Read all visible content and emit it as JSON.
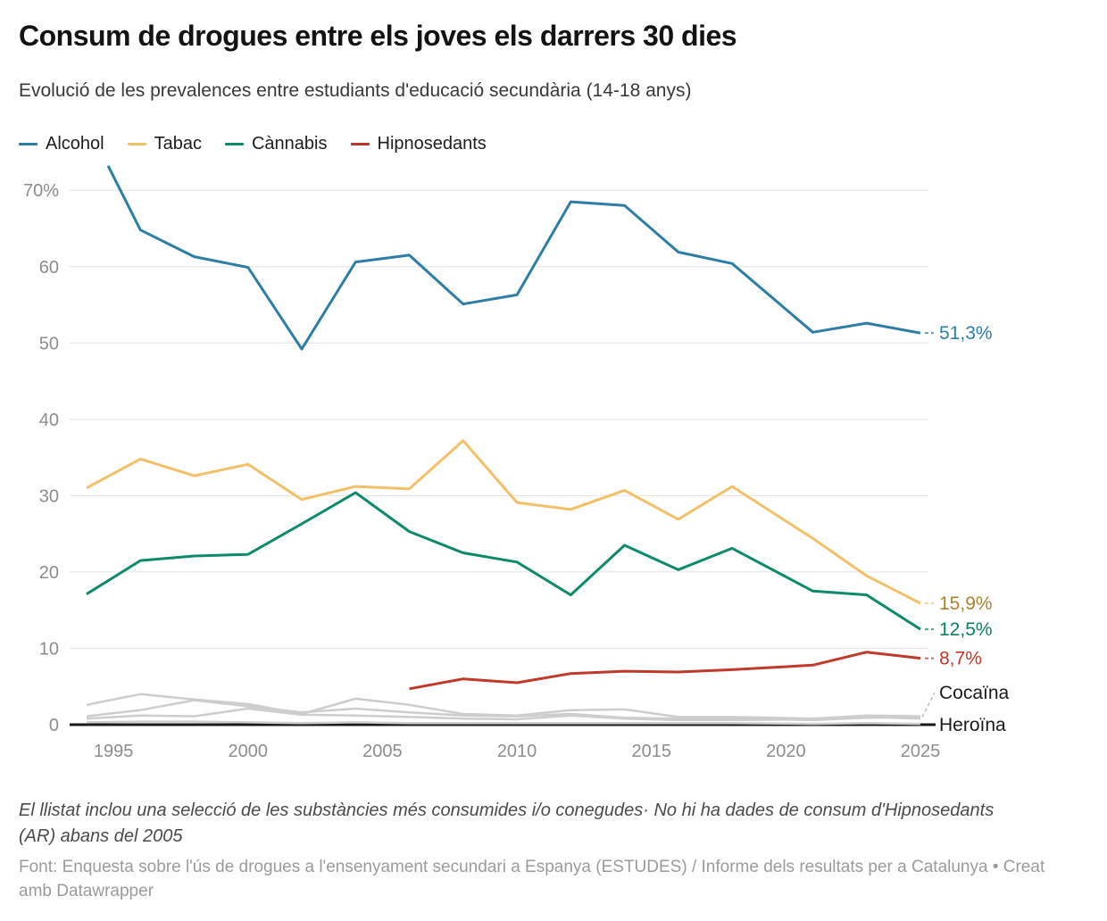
{
  "header": {
    "title": "Consum de drogues entre els joves els darrers 30 dies",
    "subtitle": "Evolució de les prevalences entre estudiants d'educació secundària (14-18 anys)"
  },
  "legend": [
    {
      "label": "Alcohol",
      "color": "#2d7ea6"
    },
    {
      "label": "Tabac",
      "color": "#f2c067"
    },
    {
      "label": "Cànnabis",
      "color": "#0d8a6b"
    },
    {
      "label": "Hipnosedants",
      "color": "#b8352a"
    }
  ],
  "notes": {
    "footnote": "El llistat inclou una selecció de les substàncies més consumides i/o conegudes· No hi ha dades de consum d'Hipnosedants (AR) abans del 2005",
    "source": "Font: Enquesta sobre l'ús de drogues a l'ensenyament secundari a Espanya (ESTUDES) / Informe dels resultats per a Catalunya • Creat amb Datawrapper"
  },
  "chart_data": {
    "type": "line",
    "xlabel": "",
    "ylabel": "",
    "xlim": [
      1994,
      2025
    ],
    "ylim": [
      0,
      73.5
    ],
    "grid": "horizontal",
    "x_ticks": [
      1995,
      2000,
      2005,
      2010,
      2015,
      2020,
      2025
    ],
    "y_ticks": [
      0,
      10,
      20,
      30,
      40,
      50,
      60,
      70
    ],
    "y_top_tick_label": "70%",
    "colors": {
      "gridline": "#e4e4e4",
      "axis": "#1a1a1a",
      "tick_text": "#8d8d8d",
      "gray_series": "#cdcdcd",
      "leader": "#bdbdbd"
    },
    "series": [
      {
        "id": "gray-1",
        "label": null,
        "color": "#cdcdcd",
        "width": 2.5,
        "points": [
          [
            1994,
            2.6
          ],
          [
            1996,
            4.0
          ],
          [
            1998,
            3.3
          ],
          [
            2000,
            2.7
          ],
          [
            2002,
            1.4
          ],
          [
            2004,
            3.4
          ],
          [
            2006,
            2.6
          ],
          [
            2008,
            1.4
          ],
          [
            2010,
            1.2
          ],
          [
            2012,
            1.9
          ],
          [
            2014,
            2.0
          ],
          [
            2016,
            1.0
          ],
          [
            2018,
            1.0
          ],
          [
            2021,
            0.8
          ],
          [
            2023,
            1.2
          ],
          [
            2025,
            1.1
          ]
        ]
      },
      {
        "id": "gray-2",
        "label": null,
        "color": "#cdcdcd",
        "width": 2.5,
        "points": [
          [
            1994,
            0.8
          ],
          [
            1996,
            1.2
          ],
          [
            1998,
            1.1
          ],
          [
            2000,
            2.1
          ],
          [
            2002,
            1.3
          ],
          [
            2004,
            1.2
          ],
          [
            2006,
            1.0
          ],
          [
            2008,
            0.8
          ],
          [
            2010,
            0.7
          ],
          [
            2012,
            1.2
          ],
          [
            2014,
            0.8
          ],
          [
            2016,
            0.6
          ],
          [
            2018,
            0.6
          ],
          [
            2021,
            0.7
          ],
          [
            2023,
            1.0
          ],
          [
            2025,
            0.8
          ]
        ]
      },
      {
        "id": "cocaina",
        "label": "Cocaïna",
        "color": "#cdcdcd",
        "width": 2.5,
        "end_label": {
          "text": "Cocaïna",
          "color": "#1a1a1a",
          "anchor_value": 4.2,
          "leader": "dashed"
        },
        "points": [
          [
            1994,
            1.1
          ],
          [
            1996,
            1.9
          ],
          [
            1998,
            3.2
          ],
          [
            2000,
            2.4
          ],
          [
            2002,
            1.6
          ],
          [
            2004,
            2.1
          ],
          [
            2006,
            1.6
          ],
          [
            2008,
            1.2
          ],
          [
            2010,
            1.1
          ],
          [
            2012,
            1.4
          ],
          [
            2014,
            0.9
          ],
          [
            2016,
            0.8
          ],
          [
            2018,
            0.8
          ],
          [
            2021,
            0.6
          ],
          [
            2023,
            0.9
          ],
          [
            2025,
            1.0
          ]
        ]
      },
      {
        "id": "heroina",
        "label": "Heroïna",
        "color": "#cdcdcd",
        "width": 2.5,
        "end_label": {
          "text": "Heroïna",
          "color": "#1a1a1a",
          "anchor_value": 0.0,
          "leader": "none"
        },
        "points": [
          [
            1994,
            0.3
          ],
          [
            1996,
            0.4
          ],
          [
            1998,
            0.4
          ],
          [
            2000,
            0.3
          ],
          [
            2002,
            0.2
          ],
          [
            2004,
            0.3
          ],
          [
            2006,
            0.2
          ],
          [
            2008,
            0.2
          ],
          [
            2010,
            0.2
          ],
          [
            2012,
            0.2
          ],
          [
            2014,
            0.2
          ],
          [
            2016,
            0.2
          ],
          [
            2018,
            0.2
          ],
          [
            2021,
            0.1
          ],
          [
            2023,
            0.2
          ],
          [
            2025,
            0.1
          ]
        ]
      },
      {
        "id": "hipnosedants",
        "label": "Hipnosedants",
        "color": "#c03a2b",
        "width": 3,
        "end_label": {
          "text": "8,7%",
          "color": "#c0392b",
          "anchor_value": 8.7,
          "leader": "dash"
        },
        "points": [
          [
            2006,
            4.7
          ],
          [
            2008,
            6.0
          ],
          [
            2010,
            5.5
          ],
          [
            2012,
            6.7
          ],
          [
            2014,
            7.0
          ],
          [
            2016,
            6.9
          ],
          [
            2018,
            7.2
          ],
          [
            2021,
            7.8
          ],
          [
            2023,
            9.5
          ],
          [
            2025,
            8.7
          ]
        ]
      },
      {
        "id": "tabac",
        "label": "Tabac",
        "color": "#f2c067",
        "width": 3,
        "end_label": {
          "text": "15,9%",
          "color": "#a8842c",
          "anchor_value": 15.9,
          "leader": "dash"
        },
        "points": [
          [
            1994,
            31.0
          ],
          [
            1996,
            34.8
          ],
          [
            1998,
            32.6
          ],
          [
            2000,
            34.1
          ],
          [
            2002,
            29.5
          ],
          [
            2004,
            31.2
          ],
          [
            2006,
            30.9
          ],
          [
            2008,
            37.2
          ],
          [
            2010,
            29.1
          ],
          [
            2012,
            28.2
          ],
          [
            2014,
            30.7
          ],
          [
            2016,
            26.9
          ],
          [
            2018,
            31.2
          ],
          [
            2021,
            24.4
          ],
          [
            2023,
            19.5
          ],
          [
            2025,
            15.9
          ]
        ]
      },
      {
        "id": "cannabis",
        "label": "Cànnabis",
        "color": "#0d8a6b",
        "width": 3,
        "end_label": {
          "text": "12,5%",
          "color": "#0c8066",
          "anchor_value": 12.5,
          "leader": "dash"
        },
        "points": [
          [
            1994,
            17.1
          ],
          [
            1996,
            21.5
          ],
          [
            1998,
            22.1
          ],
          [
            2000,
            22.3
          ],
          [
            2002,
            26.3
          ],
          [
            2004,
            30.4
          ],
          [
            2006,
            25.3
          ],
          [
            2008,
            22.5
          ],
          [
            2010,
            21.3
          ],
          [
            2012,
            17.0
          ],
          [
            2014,
            23.5
          ],
          [
            2016,
            20.3
          ],
          [
            2018,
            23.1
          ],
          [
            2021,
            17.5
          ],
          [
            2023,
            17.0
          ],
          [
            2025,
            12.5
          ]
        ]
      },
      {
        "id": "alcohol",
        "label": "Alcohol",
        "color": "#2d7ea6",
        "width": 3,
        "end_label": {
          "text": "51,3%",
          "color": "#2980a9",
          "anchor_value": 51.3,
          "leader": "dash"
        },
        "points": [
          [
            1994.8,
            73.2
          ],
          [
            1996,
            64.8
          ],
          [
            1998,
            61.3
          ],
          [
            2000,
            59.9
          ],
          [
            2002,
            49.2
          ],
          [
            2004,
            60.6
          ],
          [
            2006,
            61.5
          ],
          [
            2008,
            55.1
          ],
          [
            2010,
            56.3
          ],
          [
            2012,
            68.5
          ],
          [
            2014,
            68.0
          ],
          [
            2016,
            61.9
          ],
          [
            2018,
            60.4
          ],
          [
            2021,
            51.4
          ],
          [
            2023,
            52.6
          ],
          [
            2025,
            51.3
          ]
        ]
      }
    ]
  }
}
